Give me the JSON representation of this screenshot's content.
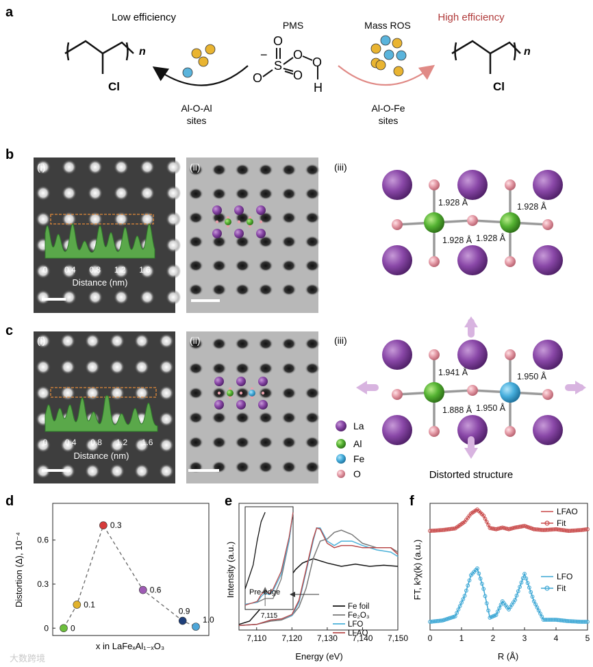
{
  "panel_a": {
    "letter": "a",
    "left_title": "Low efficiency",
    "right_title": "High efficiency",
    "pms_label": "PMS",
    "ros_label": "Mass ROS",
    "n_label": "n",
    "cl_label": "Cl",
    "o_label": "O",
    "s_label": "S",
    "h_label": "H",
    "minus": "−",
    "left_site": [
      "Al-O-Al",
      "sites"
    ],
    "right_site": [
      "Al-O-Fe",
      "sites"
    ],
    "colors": {
      "right_title": "#b03a3a",
      "ros_gold": "#e9b431",
      "ros_blue": "#5ab4dc",
      "right_arrow": "#e08a86"
    }
  },
  "panel_b": {
    "letter": "b",
    "sub_i": "(i)",
    "sub_ii": "(ii)",
    "sub_iii": "(iii)",
    "ticks": [
      "0",
      "0.4",
      "0.8",
      "1.2",
      "1.6"
    ],
    "xlabel": "Distance (nm)",
    "bonds": [
      "1.928 Å",
      "1.928 Å",
      "1.928 Å",
      "1.928 Å"
    ]
  },
  "panel_c": {
    "letter": "c",
    "sub_i": "(i)",
    "sub_ii": "(ii)",
    "sub_iii": "(iii)",
    "ticks": [
      "0",
      "0.4",
      "0.8",
      "1.2",
      "1.6"
    ],
    "xlabel": "Distance (nm)",
    "bonds": [
      "1.941 Å",
      "1.950 Å",
      "1.888 Å",
      "1.950 Å"
    ],
    "caption": "Distorted structure",
    "legend": [
      "La",
      "Al",
      "Fe",
      "O"
    ]
  },
  "panel_d": {
    "letter": "d",
    "ylabel": "Distortion (Δ), 10⁻⁴",
    "xlabel": "x in LaFeₓAl₁₋ₓO₃",
    "yticks": [
      "0",
      "0.3",
      "0.6"
    ]
  },
  "panel_e": {
    "letter": "e",
    "ylabel": "Intensity (a.u.)",
    "xlabel": "Energy (eV)",
    "inset_xlabel": "7,115",
    "preedge": "Pre-edge",
    "legend": [
      "Fe foil",
      "Fe₂O₃",
      "LFO",
      "LFAO"
    ]
  },
  "panel_f": {
    "letter": "f",
    "ylabel": "FT, k³χ(k) (a.u.)",
    "xlabel": "R (Å)",
    "legend_top": [
      "LFAO",
      "Fit"
    ],
    "legend_bottom": [
      "LFO",
      "Fit"
    ]
  },
  "watermark": "大数跨境",
  "chart_data": [
    {
      "type": "scatter",
      "title": "",
      "xlabel": "x in LaFeₓAl₁₋ₓO₃",
      "ylabel": "Distortion (Δ), 10⁻⁴",
      "x": [
        0,
        0.1,
        0.3,
        0.6,
        0.9,
        1.0
      ],
      "values": [
        0.0,
        0.16,
        0.7,
        0.26,
        0.05,
        0.01
      ],
      "point_labels": [
        "0",
        "0.1",
        "0.3",
        "0.6",
        "0.9",
        "1.0"
      ],
      "point_colors": [
        "#6cbf3c",
        "#e1b22c",
        "#d63b3b",
        "#9e5bb4",
        "#1f3f7a",
        "#4ea6d8"
      ],
      "ylim": [
        -0.05,
        0.85
      ],
      "yticks": [
        0,
        0.3,
        0.6
      ]
    },
    {
      "type": "line",
      "title": "",
      "xlabel": "Energy (eV)",
      "ylabel": "Intensity (a.u.)",
      "xlim": [
        7105,
        7150
      ],
      "xticks": [
        7110,
        7120,
        7130,
        7140,
        7150
      ],
      "series": [
        {
          "name": "Fe foil",
          "color": "#111111",
          "x": [
            7105,
            7108,
            7111,
            7113,
            7115,
            7117,
            7119,
            7121,
            7123,
            7126,
            7130,
            7134,
            7138,
            7142,
            7146,
            7150
          ],
          "y": [
            0.02,
            0.05,
            0.16,
            0.28,
            0.35,
            0.38,
            0.43,
            0.52,
            0.58,
            0.62,
            0.58,
            0.55,
            0.57,
            0.55,
            0.56,
            0.55
          ]
        },
        {
          "name": "Fe₂O₃",
          "color": "#777777",
          "x": [
            7105,
            7110,
            7114,
            7117,
            7120,
            7122,
            7124,
            7126,
            7128,
            7130,
            7132,
            7134,
            7137,
            7140,
            7144,
            7148,
            7150
          ],
          "y": [
            0.01,
            0.02,
            0.05,
            0.06,
            0.1,
            0.18,
            0.35,
            0.62,
            0.78,
            0.8,
            0.86,
            0.88,
            0.84,
            0.76,
            0.72,
            0.72,
            0.68
          ]
        },
        {
          "name": "LFO",
          "color": "#4ab0d8",
          "x": [
            7105,
            7110,
            7114,
            7117,
            7120,
            7122,
            7124,
            7126,
            7127,
            7128,
            7130,
            7132,
            7134,
            7137,
            7140,
            7144,
            7148,
            7150
          ],
          "y": [
            0.01,
            0.02,
            0.06,
            0.07,
            0.1,
            0.22,
            0.5,
            0.78,
            0.9,
            0.9,
            0.78,
            0.74,
            0.78,
            0.78,
            0.74,
            0.7,
            0.68,
            0.64
          ]
        },
        {
          "name": "LFAO",
          "color": "#b84a4a",
          "x": [
            7105,
            7110,
            7114,
            7117,
            7120,
            7122,
            7124,
            7126,
            7127,
            7128,
            7130,
            7132,
            7134,
            7137,
            7140,
            7144,
            7148,
            7150
          ],
          "y": [
            0.01,
            0.02,
            0.06,
            0.07,
            0.11,
            0.24,
            0.52,
            0.8,
            0.9,
            0.89,
            0.76,
            0.72,
            0.74,
            0.74,
            0.72,
            0.72,
            0.72,
            0.66
          ]
        }
      ]
    },
    {
      "type": "line",
      "title": "",
      "xlabel": "R (Å)",
      "ylabel": "FT, k³χ(k) (a.u.)",
      "xlim": [
        0,
        5
      ],
      "xticks": [
        0,
        1,
        2,
        3,
        4,
        5
      ],
      "series": [
        {
          "name": "LFAO",
          "color": "#c84848",
          "x": [
            0,
            0.4,
            0.8,
            1.1,
            1.3,
            1.5,
            1.7,
            1.9,
            2.1,
            2.3,
            2.5,
            2.7,
            3.0,
            3.3,
            3.6,
            4.0,
            4.4,
            4.8,
            5.0
          ],
          "y": [
            0.08,
            0.1,
            0.14,
            0.3,
            0.5,
            0.6,
            0.45,
            0.15,
            0.12,
            0.16,
            0.12,
            0.16,
            0.2,
            0.12,
            0.1,
            0.12,
            0.08,
            0.1,
            0.12
          ]
        },
        {
          "name": "LFO",
          "color": "#3aa6d4",
          "x": [
            0,
            0.4,
            0.8,
            1.1,
            1.3,
            1.5,
            1.7,
            1.9,
            2.1,
            2.3,
            2.5,
            2.7,
            3.0,
            3.3,
            3.6,
            4.0,
            4.4,
            4.8,
            5.0
          ],
          "y": [
            0.02,
            0.04,
            0.1,
            0.4,
            0.7,
            0.8,
            0.5,
            0.08,
            0.12,
            0.32,
            0.2,
            0.34,
            0.72,
            0.32,
            0.05,
            0.05,
            0.03,
            0.02,
            0.02
          ]
        }
      ]
    }
  ]
}
